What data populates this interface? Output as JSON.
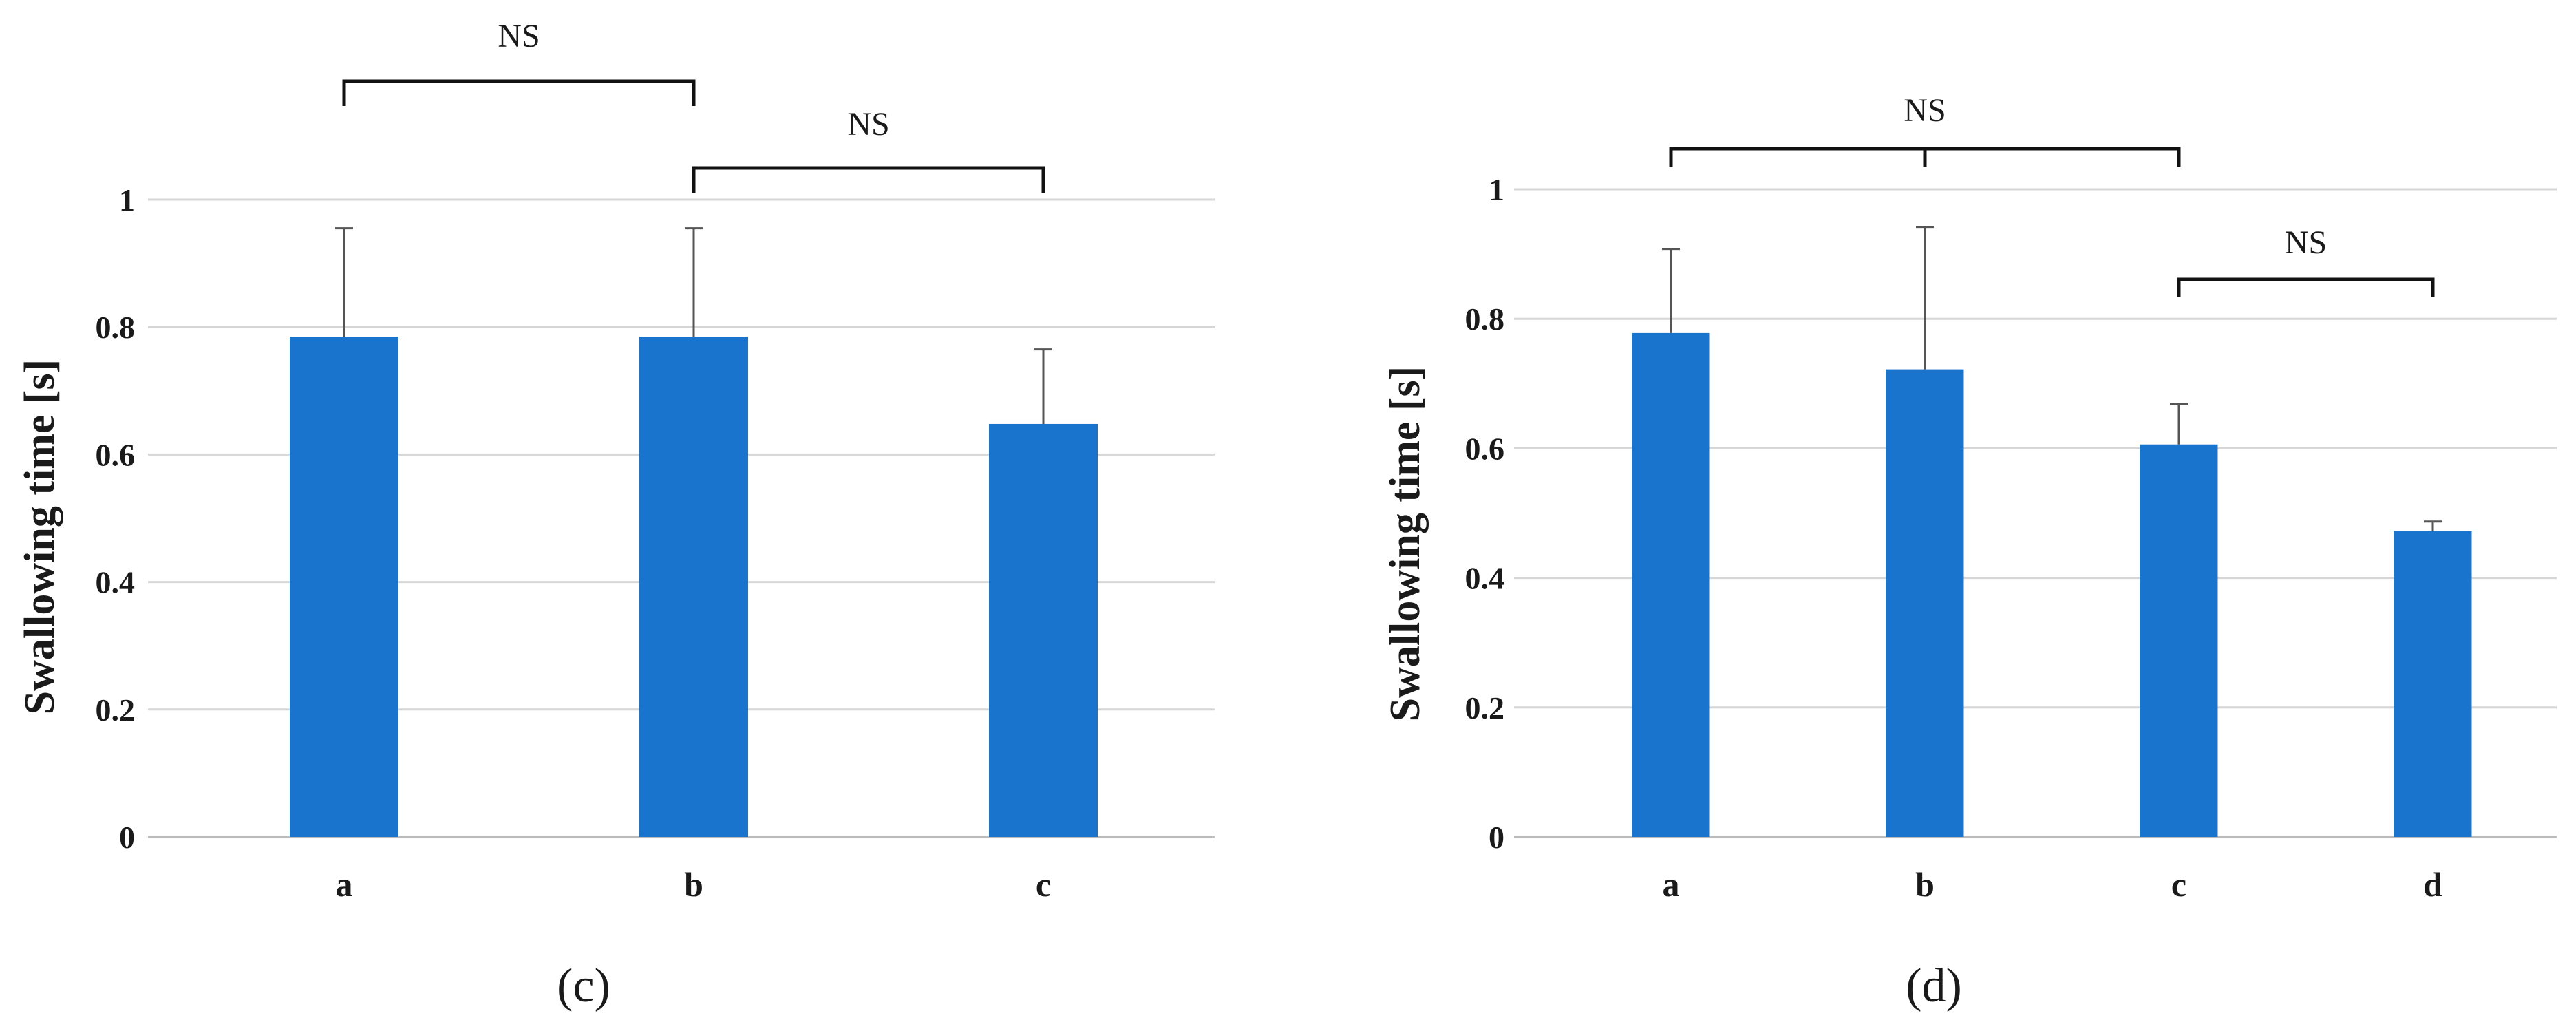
{
  "chart_data": [
    {
      "type": "bar",
      "panel_label": "(c)",
      "ylabel": "Swallowing  time  [s]",
      "xlabel": "",
      "ylim": [
        0,
        1
      ],
      "yticks": [
        "0",
        "0.2",
        "0.4",
        "0.6",
        "0.8",
        "1"
      ],
      "grid": true,
      "categories": [
        "a",
        "b",
        "c"
      ],
      "values": [
        0.785,
        0.785,
        0.648
      ],
      "errors": [
        0.17,
        0.17,
        0.117
      ],
      "bar_color": "#1874CD",
      "annotations": [
        {
          "from": "a",
          "to": "b",
          "label": "NS"
        },
        {
          "from": "b",
          "to": "c",
          "label": "NS"
        }
      ]
    },
    {
      "type": "bar",
      "panel_label": "(d)",
      "ylabel": "Swallowing  time  [s]",
      "xlabel": "",
      "ylim": [
        0,
        1
      ],
      "yticks": [
        "0",
        "0.2",
        "0.4",
        "0.6",
        "0.8",
        "1"
      ],
      "grid": true,
      "categories": [
        "a",
        "b",
        "c",
        "d"
      ],
      "values": [
        0.778,
        0.722,
        0.606,
        0.472
      ],
      "errors": [
        0.13,
        0.22,
        0.062,
        0.015
      ],
      "bar_color": "#1874CD",
      "annotations": [
        {
          "from": "a",
          "to": "c",
          "mid": "b",
          "label": "NS"
        },
        {
          "from": "c",
          "to": "d",
          "label": "NS"
        }
      ]
    }
  ]
}
